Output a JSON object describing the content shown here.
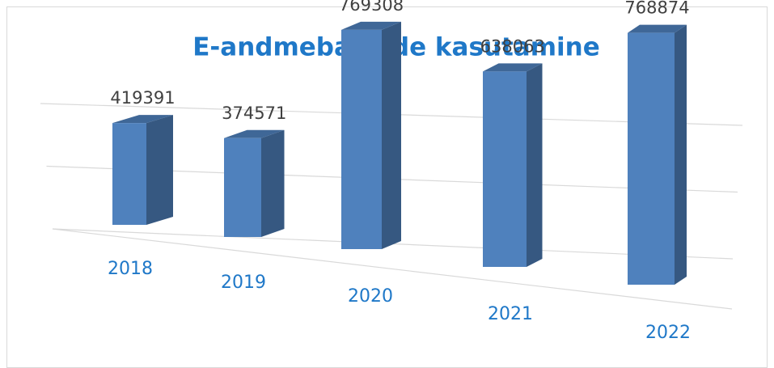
{
  "chart_data": {
    "type": "bar3d",
    "title": "E-andmebaaside kasutamine",
    "categories": [
      "2018",
      "2019",
      "2020",
      "2021",
      "2022"
    ],
    "values": [
      419391,
      374571,
      769308,
      638063,
      768874
    ],
    "color": "#4f81bd",
    "ylim": [
      0,
      1000000
    ],
    "yticks": [
      0,
      500000,
      1000000
    ],
    "grid": true
  }
}
